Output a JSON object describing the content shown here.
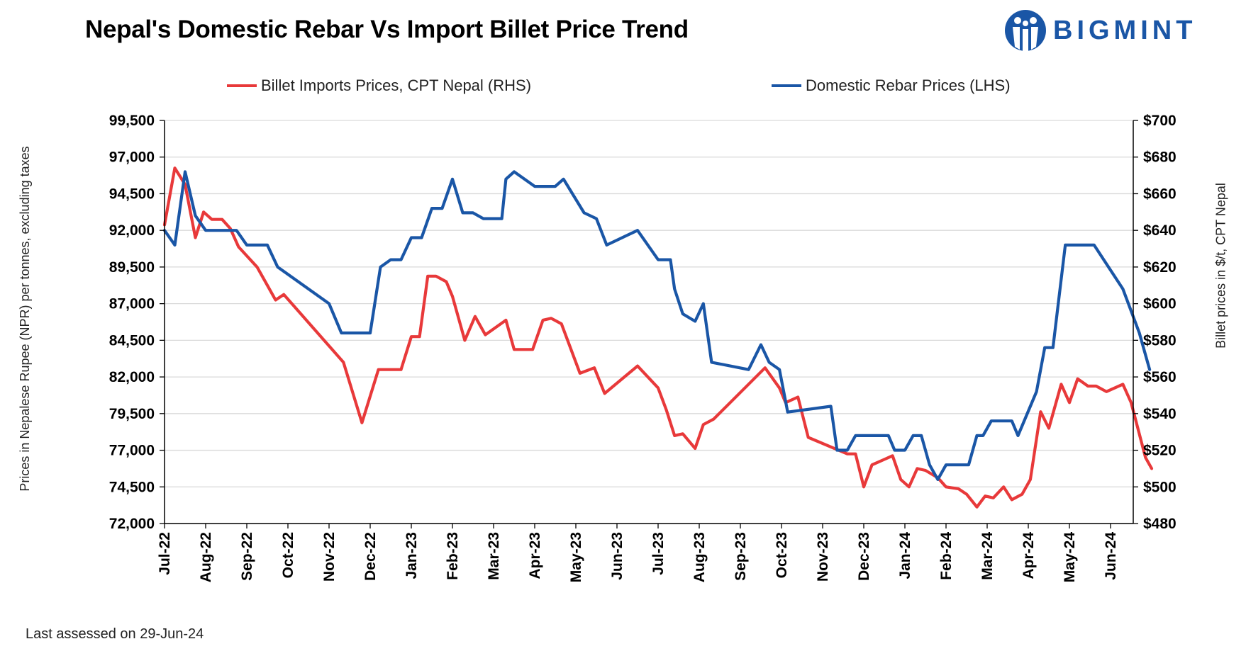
{
  "title": "Nepal's Domestic Rebar Vs Import Billet Price Trend",
  "logo_text": "BIGMINT",
  "footnote": "Last assessed on 29-Jun-24",
  "colors": {
    "rebar": "#1a56a6",
    "billet": "#e8393a",
    "grid": "#d9d9d9",
    "logo": "#1a56a6"
  },
  "chart_data": {
    "type": "line",
    "legend": [
      "Billet Imports Prices, CPT Nepal (RHS)",
      "Domestic Rebar Prices (LHS)"
    ],
    "ylabel_left": "Prices in Nepalese Rupee (NPR) per tonnes, excluding taxes",
    "ylabel_right": "Billet prices in $/t, CPT Nepal",
    "ylim_left": [
      72000,
      99500
    ],
    "ylim_right": [
      480,
      700
    ],
    "left_ticks": [
      "99,500",
      "97,000",
      "94,500",
      "92,000",
      "89,500",
      "87,000",
      "84,500",
      "82,000",
      "79,500",
      "77,000",
      "74,500",
      "72,000"
    ],
    "right_ticks": [
      "$700",
      "$680",
      "$660",
      "$640",
      "$620",
      "$600",
      "$580",
      "$560",
      "$540",
      "$520",
      "$500",
      "$480"
    ],
    "x_labels": [
      "Jul-22",
      "Aug-22",
      "Sep-22",
      "Oct-22",
      "Nov-22",
      "Dec-22",
      "Jan-23",
      "Feb-23",
      "Mar-23",
      "Apr-23",
      "May-23",
      "Jun-23",
      "Jul-23",
      "Aug-23",
      "Sep-23",
      "Oct-23",
      "Nov-23",
      "Dec-23",
      "Jan-24",
      "Feb-24",
      "Mar-24",
      "Apr-24",
      "May-24",
      "Jun-24"
    ],
    "x_range": [
      0,
      23.95
    ],
    "series": [
      {
        "name": "Domestic Rebar Prices (LHS)",
        "axis": "left",
        "points": [
          [
            0,
            92000
          ],
          [
            0.25,
            91000
          ],
          [
            0.5,
            96000
          ],
          [
            0.75,
            93000
          ],
          [
            1,
            92000
          ],
          [
            1.5,
            92000
          ],
          [
            1.75,
            92000
          ],
          [
            2,
            91000
          ],
          [
            2.5,
            91000
          ],
          [
            2.75,
            89500
          ],
          [
            4,
            87000
          ],
          [
            4.3,
            85000
          ],
          [
            5,
            85000
          ],
          [
            5.25,
            89500
          ],
          [
            5.5,
            90000
          ],
          [
            5.75,
            90000
          ],
          [
            6,
            91500
          ],
          [
            6.25,
            91500
          ],
          [
            6.5,
            93500
          ],
          [
            6.75,
            93500
          ],
          [
            7,
            95500
          ],
          [
            7.25,
            93200
          ],
          [
            7.5,
            93200
          ],
          [
            7.75,
            92800
          ],
          [
            8.2,
            92800
          ],
          [
            8.3,
            95500
          ],
          [
            8.5,
            96000
          ],
          [
            9,
            95000
          ],
          [
            9.5,
            95000
          ],
          [
            9.7,
            95500
          ],
          [
            10.2,
            93200
          ],
          [
            10.5,
            92800
          ],
          [
            10.75,
            91000
          ],
          [
            11.5,
            92000
          ],
          [
            12,
            90000
          ],
          [
            12.3,
            90000
          ],
          [
            12.4,
            88000
          ],
          [
            12.6,
            86300
          ],
          [
            12.9,
            85800
          ],
          [
            13.1,
            87000
          ],
          [
            13.3,
            83000
          ],
          [
            14.2,
            82500
          ],
          [
            14.5,
            84200
          ],
          [
            14.7,
            83000
          ],
          [
            14.95,
            82500
          ],
          [
            15.15,
            79600
          ],
          [
            16.2,
            80000
          ],
          [
            16.35,
            77000
          ],
          [
            16.6,
            77000
          ],
          [
            16.8,
            78000
          ],
          [
            17.6,
            78000
          ],
          [
            17.75,
            77000
          ],
          [
            18,
            77000
          ],
          [
            18.2,
            78000
          ],
          [
            18.4,
            78000
          ],
          [
            18.6,
            76000
          ],
          [
            18.8,
            75000
          ],
          [
            19,
            76000
          ],
          [
            19.55,
            76000
          ],
          [
            19.75,
            78000
          ],
          [
            19.9,
            78000
          ],
          [
            20.1,
            79000
          ],
          [
            20.6,
            79000
          ],
          [
            20.75,
            78000
          ],
          [
            21.05,
            80000
          ],
          [
            21.2,
            81000
          ],
          [
            21.4,
            84000
          ],
          [
            21.6,
            84000
          ],
          [
            21.9,
            91000
          ],
          [
            22.6,
            91000
          ],
          [
            23.3,
            88000
          ],
          [
            23.7,
            85000
          ],
          [
            23.95,
            82500
          ]
        ]
      },
      {
        "name": "Billet Imports Prices, CPT Nepal (RHS)",
        "axis": "right",
        "points": [
          [
            0,
            643
          ],
          [
            0.25,
            674
          ],
          [
            0.5,
            665
          ],
          [
            0.75,
            636
          ],
          [
            0.95,
            650
          ],
          [
            1.15,
            646
          ],
          [
            1.4,
            646
          ],
          [
            1.6,
            641
          ],
          [
            1.8,
            631
          ],
          [
            2.25,
            620
          ],
          [
            2.7,
            602
          ],
          [
            2.9,
            605
          ],
          [
            4.35,
            568
          ],
          [
            4.8,
            535
          ],
          [
            5.2,
            564
          ],
          [
            5.75,
            564
          ],
          [
            6,
            582
          ],
          [
            6.2,
            582
          ],
          [
            6.4,
            615
          ],
          [
            6.6,
            615
          ],
          [
            6.85,
            612
          ],
          [
            7,
            604
          ],
          [
            7.3,
            580
          ],
          [
            7.55,
            593
          ],
          [
            7.8,
            583
          ],
          [
            8.3,
            591
          ],
          [
            8.5,
            575
          ],
          [
            8.95,
            575
          ],
          [
            9.2,
            591
          ],
          [
            9.4,
            592
          ],
          [
            9.65,
            589
          ],
          [
            10.1,
            562
          ],
          [
            10.45,
            565
          ],
          [
            10.7,
            551
          ],
          [
            11.5,
            566
          ],
          [
            12,
            554
          ],
          [
            12.2,
            542
          ],
          [
            12.4,
            528
          ],
          [
            12.6,
            529
          ],
          [
            12.9,
            521
          ],
          [
            13.1,
            534
          ],
          [
            13.35,
            537
          ],
          [
            14.6,
            565
          ],
          [
            14.95,
            554
          ],
          [
            15.1,
            546
          ],
          [
            15.4,
            549
          ],
          [
            15.65,
            527
          ],
          [
            16.6,
            518
          ],
          [
            16.8,
            518
          ],
          [
            17,
            500
          ],
          [
            17.2,
            512
          ],
          [
            17.5,
            515
          ],
          [
            17.7,
            517
          ],
          [
            17.9,
            504
          ],
          [
            18.1,
            500
          ],
          [
            18.3,
            510
          ],
          [
            18.5,
            509
          ],
          [
            18.8,
            505
          ],
          [
            19,
            500
          ],
          [
            19.3,
            499
          ],
          [
            19.5,
            496
          ],
          [
            19.75,
            489
          ],
          [
            19.95,
            495
          ],
          [
            20.15,
            494
          ],
          [
            20.4,
            500
          ],
          [
            20.6,
            493
          ],
          [
            20.85,
            496
          ],
          [
            21.05,
            504
          ],
          [
            21.3,
            541
          ],
          [
            21.5,
            532
          ],
          [
            21.8,
            556
          ],
          [
            22,
            546
          ],
          [
            22.2,
            559
          ],
          [
            22.45,
            555
          ],
          [
            22.65,
            555
          ],
          [
            22.9,
            552
          ],
          [
            23.3,
            556
          ],
          [
            23.5,
            546
          ],
          [
            23.85,
            516
          ],
          [
            24,
            510
          ]
        ]
      }
    ]
  }
}
